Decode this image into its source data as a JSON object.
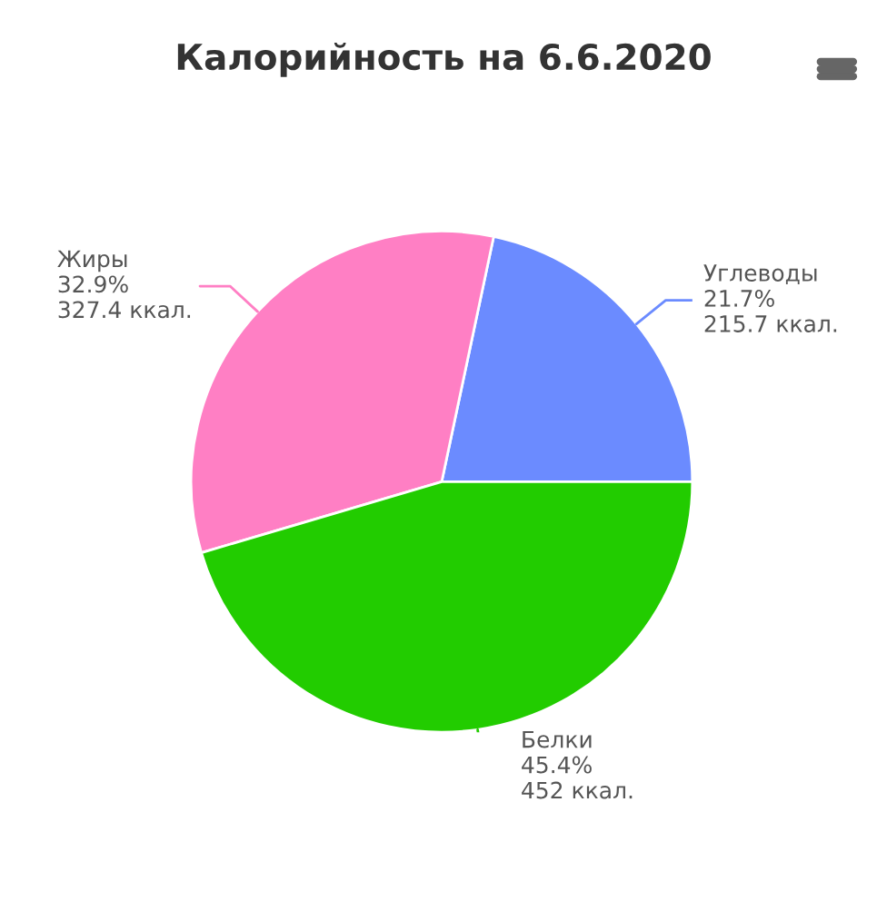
{
  "chart_data": {
    "type": "pie",
    "title": "Калорийность на 6.6.2020",
    "categories": [
      "Углеводы",
      "Жиры",
      "Белки"
    ],
    "values": [
      215.7,
      327.4,
      452
    ],
    "value_labels": [
      "21.7%\n215.7 ккал.",
      "32.9%\n327.4 ккал.",
      "45.4%\n452 ккал."
    ],
    "colors": [
      "#6b8bff",
      "#ff7fc4",
      "#22cc00"
    ],
    "legend": false
  }
}
